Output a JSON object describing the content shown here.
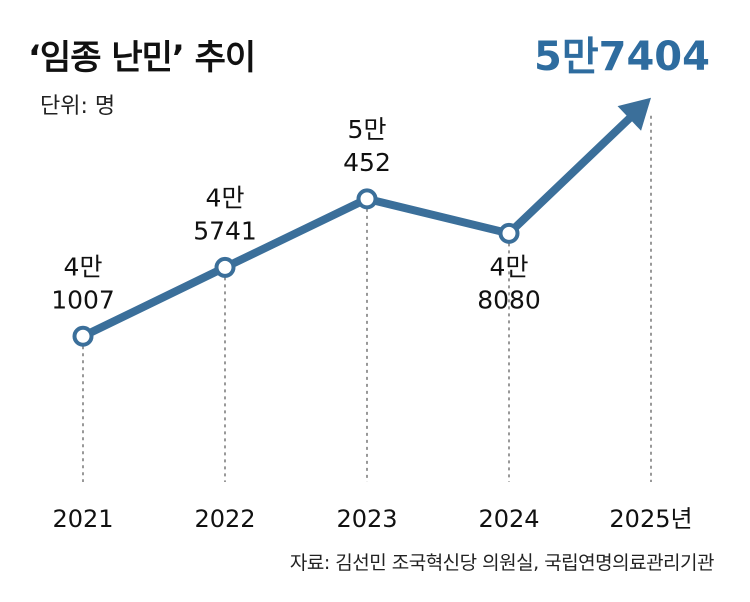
{
  "header": {
    "title": "‘임종 난민’ 추이",
    "unit": "단위: 명"
  },
  "footer": {
    "source": "자료: 김선민 조국혁신당 의원실, 국립연명의료관리기관"
  },
  "colors": {
    "line": "#3b6f9a",
    "highlight": "#2e6c9f",
    "marker_fill": "#ffffff",
    "guide": "#555555"
  },
  "chart_data": {
    "type": "line",
    "categories": [
      "2021",
      "2022",
      "2023",
      "2024",
      "2025년"
    ],
    "values": [
      41007,
      45741,
      50452,
      48080,
      57404
    ],
    "point_labels": [
      [
        "4만",
        "1007"
      ],
      [
        "4만",
        "5741"
      ],
      [
        "5만",
        "452"
      ],
      [
        "4만",
        "8080"
      ],
      [
        "5만7404"
      ]
    ],
    "title": "‘임종 난민’ 추이",
    "ylabel": "단위: 명",
    "xlabel": "",
    "ylim": [
      38000,
      60000
    ],
    "grid": false,
    "legend": "none",
    "last_point": "arrowhead"
  }
}
